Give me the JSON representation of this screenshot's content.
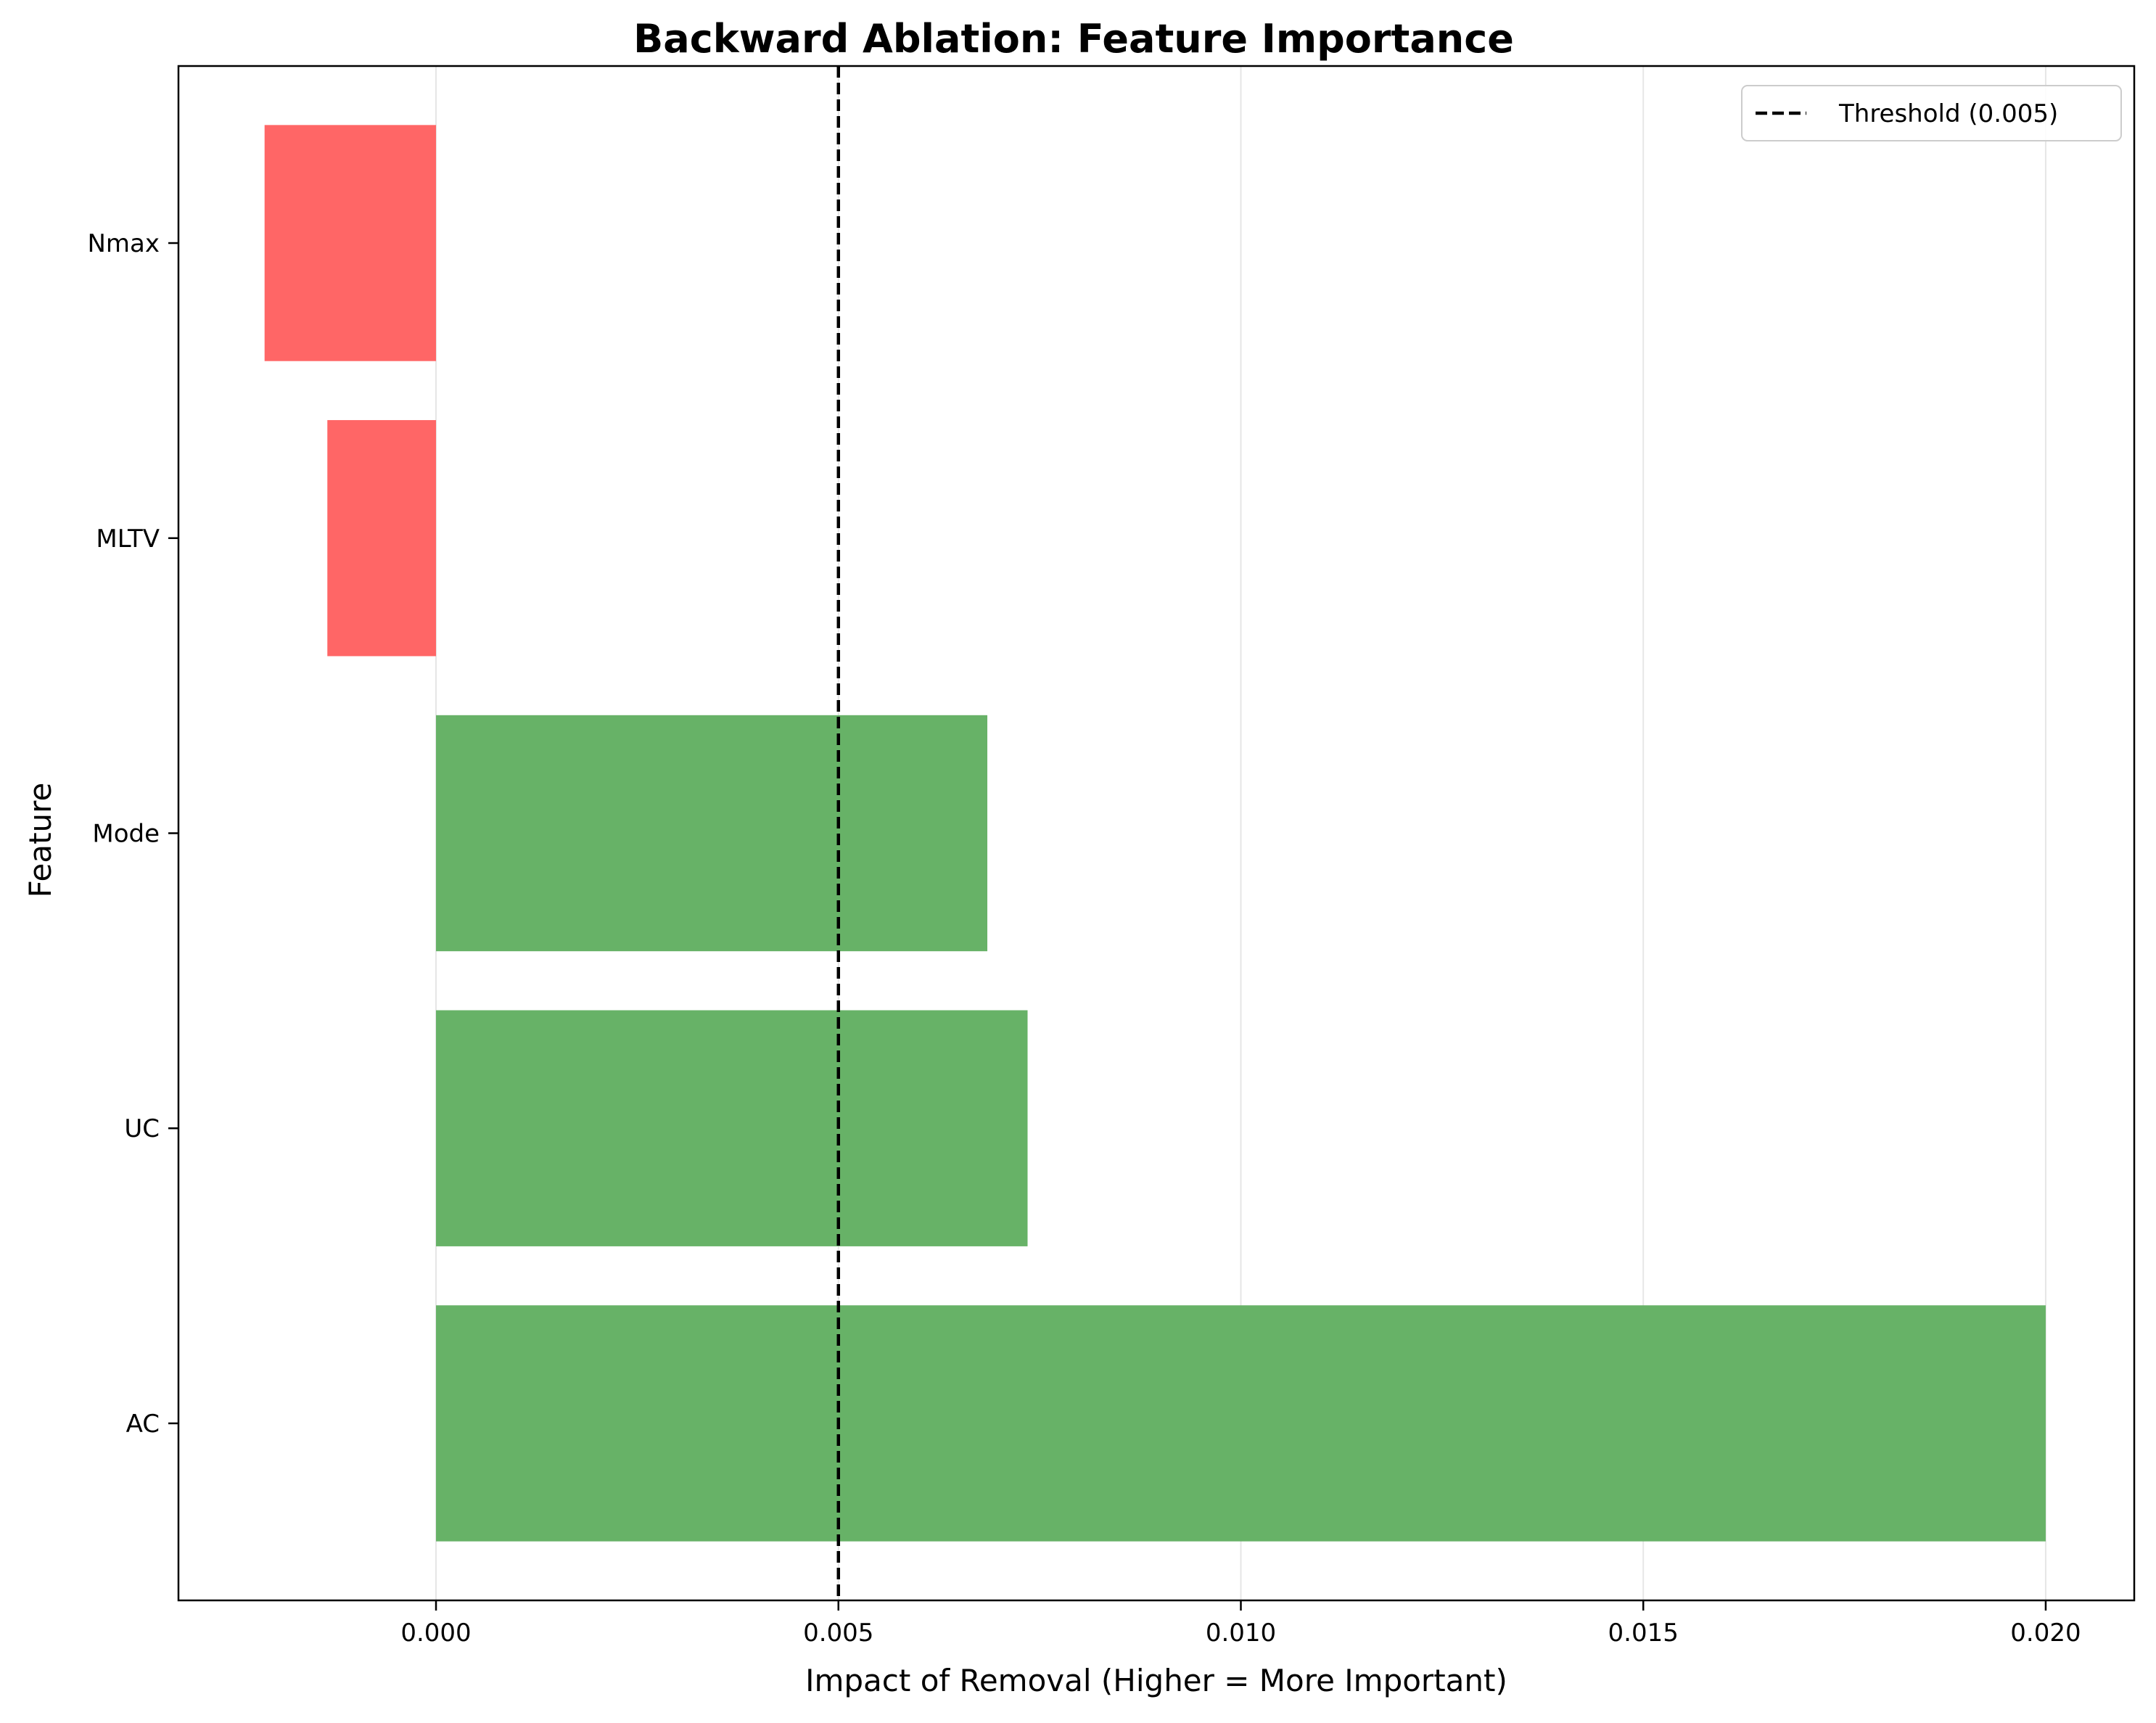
{
  "chart_data": {
    "type": "bar",
    "orientation": "horizontal",
    "title": "Backward Ablation: Feature Importance",
    "xlabel": "Impact of Removal (Higher = More Important)",
    "ylabel": "Feature",
    "categories": [
      "AC",
      "UC",
      "Mode",
      "MLTV",
      "Nmax"
    ],
    "values": [
      0.02,
      0.00735,
      0.00685,
      -0.00135,
      -0.00213
    ],
    "xlim": [
      -0.0032,
      0.0211
    ],
    "xticks": [
      0.0,
      0.005,
      0.01,
      0.015,
      0.02
    ],
    "xtick_labels": [
      "0.000",
      "0.005",
      "0.010",
      "0.015",
      "0.020"
    ],
    "grid": "x",
    "positive_color": "#67b267",
    "negative_color": "#ff6666",
    "threshold": {
      "value": 0.005,
      "label": "Threshold (0.005)",
      "style": "dashed",
      "color": "#000000"
    },
    "legend_position": "top-right"
  }
}
